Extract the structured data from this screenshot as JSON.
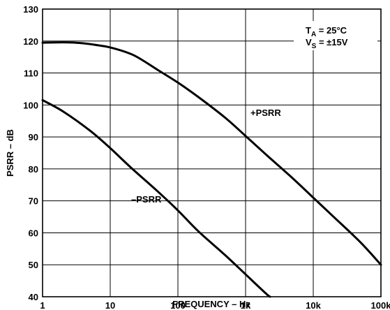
{
  "chart_data": {
    "type": "line",
    "xlabel": "FREQUENCY – Hz",
    "ylabel": "PSRR – dB",
    "xscale": "log",
    "xlim": [
      1,
      100000
    ],
    "ylim": [
      40,
      130
    ],
    "grid": true,
    "x_ticks": [
      1,
      10,
      100,
      1000,
      10000,
      100000
    ],
    "x_tick_labels": [
      "1",
      "10",
      "100",
      "1k",
      "10k",
      "100k"
    ],
    "y_ticks": [
      40,
      50,
      60,
      70,
      80,
      90,
      100,
      110,
      120,
      130
    ],
    "y_tick_labels": [
      "40",
      "50",
      "60",
      "70",
      "80",
      "90",
      "100",
      "110",
      "120",
      "130"
    ],
    "annotation": {
      "line1_main": "T",
      "line1_sub": "A",
      "line1_rest": " = 25°C",
      "line2_main": "V",
      "line2_sub": "S",
      "line2_rest": " = ±15V"
    },
    "series": [
      {
        "name": "+PSRR",
        "x": [
          1,
          2,
          3,
          4,
          6,
          10,
          20,
          30,
          50,
          100,
          200,
          500,
          1000,
          2000,
          5000,
          10000,
          20000,
          50000,
          100000
        ],
        "y": [
          119.5,
          119.6,
          119.5,
          119.3,
          118.8,
          118,
          116,
          114,
          111,
          107,
          102.5,
          96,
          90.3,
          84.5,
          77,
          71,
          65,
          57,
          50
        ]
      },
      {
        "name": "–PSRR",
        "x": [
          1,
          2,
          5,
          10,
          20,
          50,
          100,
          200,
          500,
          1000,
          2000,
          2300
        ],
        "y": [
          101.5,
          98,
          92,
          86.5,
          80.5,
          73,
          67,
          60.5,
          53,
          47,
          41,
          40
        ]
      }
    ],
    "series_label_positions": [
      "top-right of curve near 1k",
      "left of curve near 70"
    ]
  }
}
